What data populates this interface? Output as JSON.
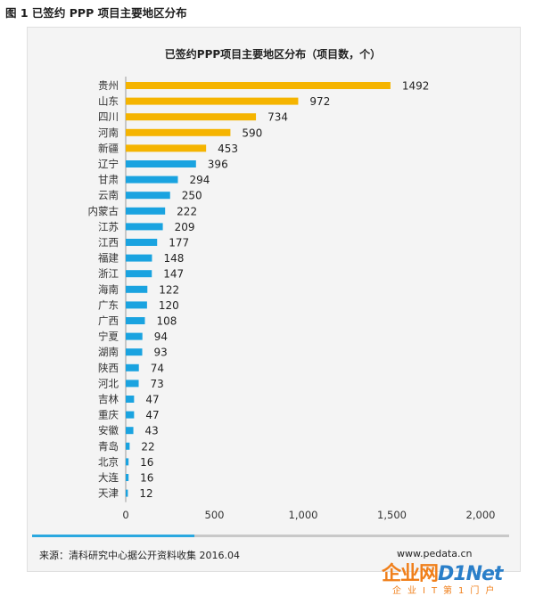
{
  "figure_caption": "图 1  已签约 PPP 项目主要地区分布",
  "chart_data": {
    "type": "bar",
    "orientation": "horizontal",
    "title": "已签约PPP项目主要地区分布（项目数，个）",
    "xlabel": "",
    "ylabel": "",
    "xlim": [
      0,
      2000
    ],
    "xticks": [
      "0",
      "500",
      "1,000",
      "1,500",
      "2,000"
    ],
    "tick_values": [
      0,
      500,
      1000,
      1500,
      2000
    ],
    "grid": false,
    "categories": [
      "贵州",
      "山东",
      "四川",
      "河南",
      "新疆",
      "辽宁",
      "甘肃",
      "云南",
      "内蒙古",
      "江苏",
      "江西",
      "福建",
      "浙江",
      "海南",
      "广东",
      "广西",
      "宁夏",
      "湖南",
      "陕西",
      "河北",
      "吉林",
      "重庆",
      "安徽",
      "青岛",
      "北京",
      "大连",
      "天津"
    ],
    "values": [
      1492,
      972,
      734,
      590,
      453,
      396,
      294,
      250,
      222,
      209,
      177,
      148,
      147,
      122,
      120,
      108,
      94,
      93,
      74,
      73,
      47,
      47,
      43,
      22,
      16,
      16,
      12
    ],
    "colors": [
      "#f5b400",
      "#f5b400",
      "#f5b400",
      "#f5b400",
      "#f5b400",
      "#1aa3e0",
      "#1aa3e0",
      "#1aa3e0",
      "#1aa3e0",
      "#1aa3e0",
      "#1aa3e0",
      "#1aa3e0",
      "#1aa3e0",
      "#1aa3e0",
      "#1aa3e0",
      "#1aa3e0",
      "#1aa3e0",
      "#1aa3e0",
      "#1aa3e0",
      "#1aa3e0",
      "#1aa3e0",
      "#1aa3e0",
      "#1aa3e0",
      "#1aa3e0",
      "#1aa3e0",
      "#1aa3e0",
      "#1aa3e0"
    ]
  },
  "footer": {
    "source": "来源：清科研究中心据公开资料收集 2016.04",
    "website": "www.pedata.cn",
    "accent_color": "#2aa8df"
  },
  "watermark": {
    "brand": "企业网",
    "brand2": "D1Net",
    "tagline": "企业IT第1门户",
    "colors": [
      "#f07f1a",
      "#2a7fc9"
    ]
  }
}
